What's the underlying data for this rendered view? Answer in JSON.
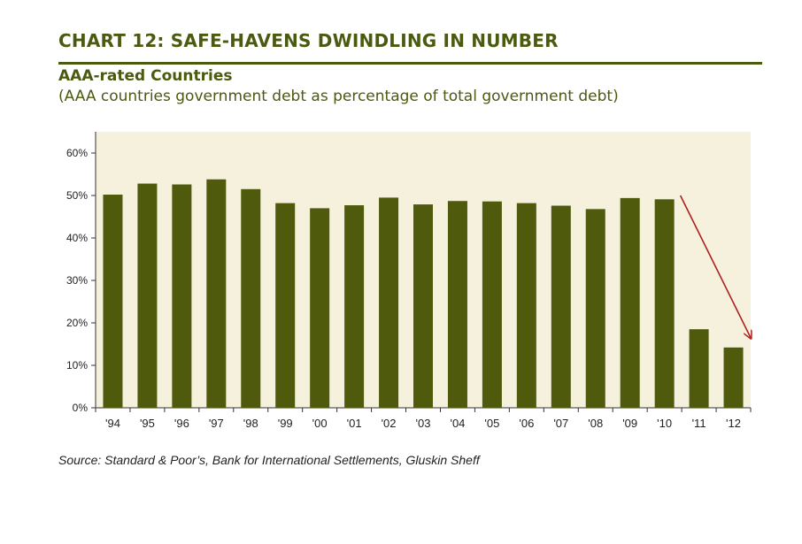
{
  "header": {
    "title": "CHART 12: SAFE-HAVENS DWINDLING IN NUMBER",
    "subtitle": "AAA-rated Countries",
    "subtitle2": "(AAA countries government debt as percentage of total government debt)"
  },
  "footer": {
    "source": "Source: Standard & Poor’s, Bank for International Settlements, Gluskin Sheff"
  },
  "colors": {
    "bar": "#4f5a0c",
    "plot_bg": "#f5f1dc",
    "arrow": "#b01e1e",
    "text": "#4a5a10"
  },
  "chart_data": {
    "type": "bar",
    "categories": [
      "'94",
      "'95",
      "'96",
      "'97",
      "'98",
      "'99",
      "'00",
      "'01",
      "'02",
      "'03",
      "'04",
      "'05",
      "'06",
      "'07",
      "'08",
      "'09",
      "'10",
      "'11",
      "'12"
    ],
    "values": [
      50.2,
      52.8,
      52.6,
      53.8,
      51.5,
      48.2,
      47.0,
      47.7,
      49.5,
      47.9,
      48.7,
      48.6,
      48.2,
      47.6,
      46.8,
      49.4,
      49.1,
      18.5,
      14.2
    ],
    "ylim": [
      0,
      65
    ],
    "yticks": [
      0,
      10,
      20,
      30,
      40,
      50,
      60
    ],
    "ytick_labels": [
      "0%",
      "10%",
      "20%",
      "30%",
      "40%",
      "50%",
      "60%"
    ],
    "title": "CHART 12: SAFE-HAVENS DWINDLING IN NUMBER",
    "xlabel": "",
    "ylabel": "",
    "grid": false,
    "annotation": {
      "type": "arrow",
      "from": {
        "x": "'10",
        "y": 50
      },
      "to": {
        "x": "'12",
        "y": 16.5
      },
      "color": "#b01e1e"
    }
  }
}
